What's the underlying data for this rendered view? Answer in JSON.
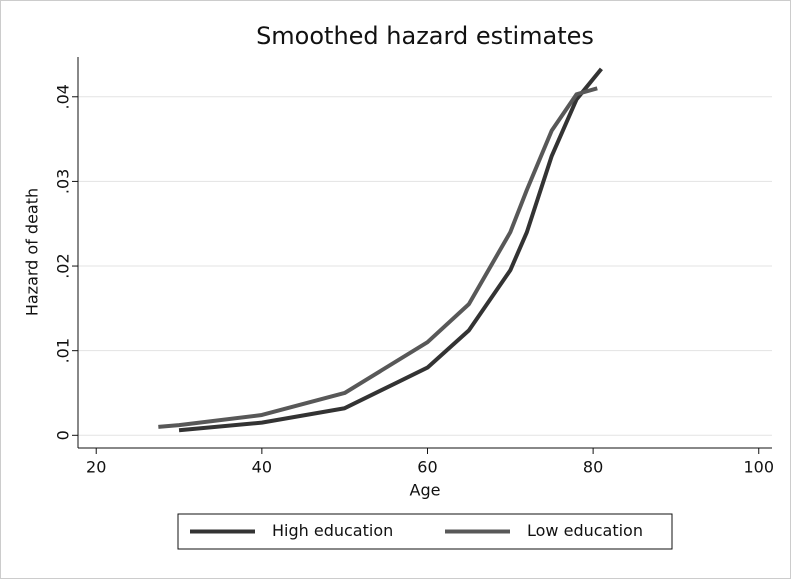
{
  "chart_data": {
    "type": "line",
    "title": "Smoothed hazard estimates",
    "xlabel": "Age",
    "ylabel": "Hazard of death",
    "xlim": [
      17.8,
      101.6
    ],
    "xticks": [
      20,
      40,
      60,
      80,
      100
    ],
    "ylim": [
      -0.0015,
      0.0447
    ],
    "yticks": [
      0,
      {
        "value": 0.01,
        "label": ".01"
      },
      {
        "value": 0.02,
        "label": ".02"
      },
      {
        "value": 0.03,
        "label": ".03"
      },
      {
        "value": 0.04,
        "label": ".04"
      }
    ],
    "grid": true,
    "legend": "bottom",
    "series": [
      {
        "name": "High education",
        "color": "#333333",
        "x": [
          30,
          40,
          50,
          60,
          65,
          70,
          72,
          75,
          78,
          81
        ],
        "values": [
          0.0006,
          0.0015,
          0.0032,
          0.008,
          0.0124,
          0.0195,
          0.024,
          0.033,
          0.0397,
          0.0433
        ]
      },
      {
        "name": "Low education",
        "color": "#585858",
        "x": [
          27.5,
          30,
          40,
          50,
          60,
          65,
          70,
          72,
          75,
          78,
          80.5
        ],
        "values": [
          0.001,
          0.0012,
          0.0024,
          0.005,
          0.011,
          0.0155,
          0.024,
          0.029,
          0.036,
          0.0403,
          0.041
        ]
      }
    ]
  }
}
